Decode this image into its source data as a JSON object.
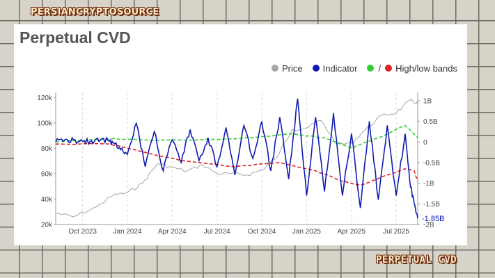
{
  "brand": {
    "top": "PERSIANCRYPTOSOURCE",
    "bottom": "PERPETUAL CVD"
  },
  "chart_data": {
    "type": "line",
    "title": "Perpetual CVD",
    "legend": {
      "placement": "top-right",
      "items": [
        {
          "name": "Price",
          "color": "#a6a6a6"
        },
        {
          "name": "Indicator",
          "color": "#0f1bb0"
        },
        {
          "name": "High/low bands",
          "colors": [
            "#33cc33",
            "#dd2222"
          ]
        }
      ]
    },
    "grid": "vertical-dashed",
    "x_ticks": [
      "Oct 2023",
      "Jan 2024",
      "Apr 2024",
      "Jul 2024",
      "Oct 2024",
      "Jan 2025",
      "Apr 2025",
      "Jul 2025"
    ],
    "x_range_months": [
      2023.6,
      2025.62
    ],
    "y_left": {
      "ticks": [
        "20k",
        "40k",
        "60k",
        "80k",
        "100k",
        "120k"
      ],
      "range": [
        20000,
        124000
      ]
    },
    "y_right": {
      "ticks": [
        "-2B",
        "-1.5B",
        "-1B",
        "-0.5B",
        "0",
        "0.5B",
        "1B"
      ],
      "range": [
        -2.0,
        1.2
      ]
    },
    "last_value_label": "-1.85B",
    "price": {
      "x": [
        2023.6,
        2023.7,
        2023.83,
        2023.92,
        2024.0,
        2024.08,
        2024.17,
        2024.25,
        2024.33,
        2024.42,
        2024.5,
        2024.58,
        2024.67,
        2024.75,
        2024.83,
        2024.92,
        2025.0,
        2025.08,
        2025.17,
        2025.25,
        2025.33,
        2025.42,
        2025.5,
        2025.58,
        2025.62
      ],
      "y": [
        29000,
        26000,
        34000,
        43000,
        45000,
        52000,
        68000,
        65000,
        62000,
        67000,
        60000,
        60000,
        59000,
        63000,
        72000,
        95000,
        96000,
        102000,
        83000,
        84000,
        95000,
        106000,
        108000,
        118000,
        115000
      ]
    },
    "indicator": {
      "x": [
        2023.6,
        2023.65,
        2023.7,
        2023.75,
        2023.8,
        2023.85,
        2023.9,
        2023.93,
        2023.97,
        2024.0,
        2024.05,
        2024.1,
        2024.15,
        2024.2,
        2024.25,
        2024.3,
        2024.35,
        2024.4,
        2024.45,
        2024.5,
        2024.55,
        2024.6,
        2024.65,
        2024.7,
        2024.75,
        2024.8,
        2024.85,
        2024.9,
        2024.95,
        2025.0,
        2025.05,
        2025.1,
        2025.15,
        2025.2,
        2025.25,
        2025.3,
        2025.35,
        2025.4,
        2025.45,
        2025.5,
        2025.55,
        2025.58,
        2025.6,
        2025.62
      ],
      "y": [
        0.0,
        0.05,
        0.05,
        0.02,
        0.03,
        0.05,
        0.02,
        -0.05,
        -0.15,
        -0.3,
        0.45,
        -0.6,
        0.25,
        -0.7,
        0.05,
        -0.5,
        0.3,
        -0.45,
        0.1,
        -0.6,
        0.35,
        -0.8,
        0.4,
        -0.4,
        0.5,
        -0.7,
        0.6,
        -0.9,
        1.05,
        -1.3,
        0.6,
        -1.2,
        0.7,
        -1.3,
        0.2,
        -1.6,
        0.5,
        -1.4,
        0.4,
        -1.3,
        0.2,
        -1.1,
        -1.5,
        -1.85
      ]
    },
    "high_band": {
      "x": [
        2023.6,
        2023.9,
        2024.1,
        2024.4,
        2024.7,
        2024.9,
        2025.1,
        2025.25,
        2025.4,
        2025.55,
        2025.62
      ],
      "y": [
        0.0,
        0.08,
        0.05,
        0.05,
        0.1,
        0.2,
        0.1,
        -0.15,
        0.1,
        0.4,
        0.1
      ]
    },
    "low_band": {
      "x": [
        2023.6,
        2023.9,
        2024.05,
        2024.3,
        2024.6,
        2024.85,
        2025.05,
        2025.2,
        2025.3,
        2025.45,
        2025.55,
        2025.6,
        2025.62
      ],
      "y": [
        -0.05,
        -0.05,
        -0.2,
        -0.45,
        -0.6,
        -0.5,
        -0.7,
        -0.95,
        -1.05,
        -0.8,
        -0.65,
        -0.7,
        -0.95
      ]
    }
  }
}
